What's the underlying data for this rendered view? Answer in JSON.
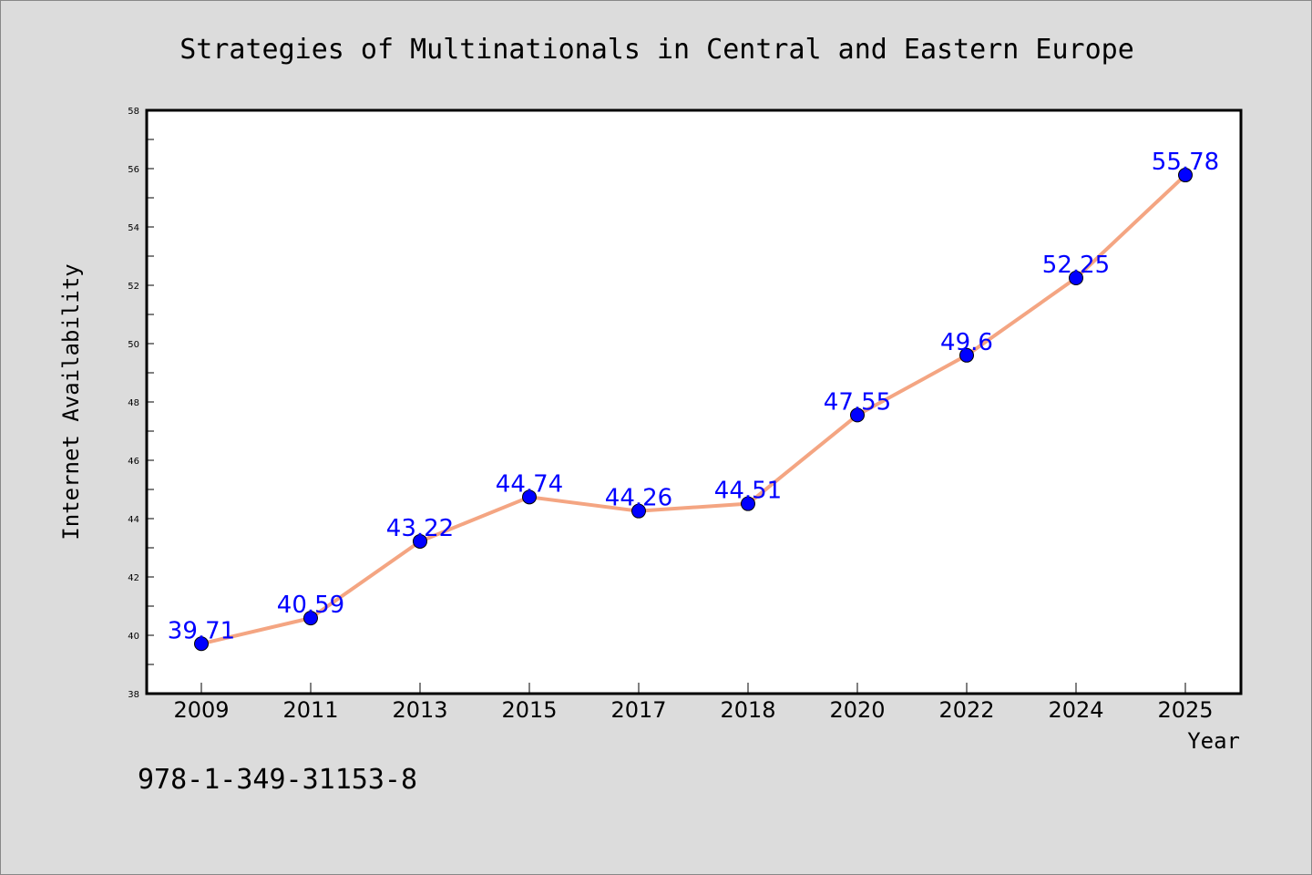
{
  "chart_data": {
    "type": "line",
    "title": "Strategies of Multinationals in Central and Eastern Europe",
    "xlabel": "Year",
    "ylabel": "Internet Availability",
    "categories": [
      "2009",
      "2011",
      "2013",
      "2015",
      "2017",
      "2018",
      "2020",
      "2022",
      "2024",
      "2025"
    ],
    "series": [
      {
        "values": [
          39.71,
          40.59,
          43.22,
          44.74,
          44.26,
          44.51,
          47.55,
          49.6,
          52.25,
          55.78
        ],
        "labels": [
          "39.71",
          "40.59",
          "43.22",
          "44.74",
          "44.26",
          "44.51",
          "47.55",
          "49.6",
          "52.25",
          "55.78"
        ],
        "line_color": "#f4a582",
        "marker_color": "#0000ff"
      }
    ],
    "ylim": [
      38,
      58
    ],
    "yticks": [
      38,
      40,
      42,
      44,
      46,
      48,
      50,
      52,
      54,
      56,
      58
    ],
    "ytick_labels": [
      "38",
      "40",
      "42",
      "44",
      "46",
      "48",
      "50",
      "52",
      "54",
      "56",
      "58"
    ],
    "grid": false,
    "legend": "none"
  },
  "footnote": "978-1-349-31153-8",
  "colors": {
    "background": "#dcdcdc",
    "plot_background": "#ffffff",
    "line": "#f4a582",
    "marker": "#0000ff",
    "data_label": "#0000ff"
  }
}
